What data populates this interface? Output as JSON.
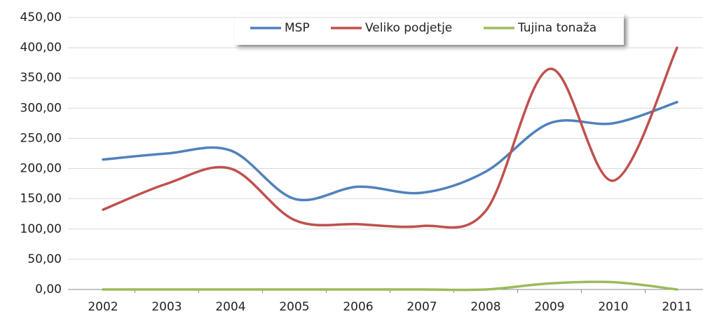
{
  "chart_data": {
    "type": "line",
    "categories": [
      "2002",
      "2003",
      "2004",
      "2005",
      "2006",
      "2007",
      "2008",
      "2009",
      "2010",
      "2011"
    ],
    "series": [
      {
        "name": "MSP",
        "color": "#4f81bd",
        "values": [
          215,
          225,
          230,
          150,
          170,
          160,
          195,
          275,
          275,
          310
        ]
      },
      {
        "name": "Veliko podjetje",
        "color": "#c0504d",
        "values": [
          132,
          175,
          200,
          115,
          108,
          105,
          130,
          365,
          180,
          400
        ]
      },
      {
        "name": "Tujina tonaža",
        "color": "#9bbb59",
        "values": [
          0,
          0,
          0,
          0,
          0,
          0,
          0,
          10,
          12,
          0
        ]
      }
    ],
    "ylim": [
      0,
      450
    ],
    "yticks": [
      {
        "value": 0,
        "label": "0,00"
      },
      {
        "value": 50,
        "label": "50,00"
      },
      {
        "value": 100,
        "label": "100,00"
      },
      {
        "value": 150,
        "label": "150,00"
      },
      {
        "value": 200,
        "label": "200,00"
      },
      {
        "value": 250,
        "label": "250,00"
      },
      {
        "value": 300,
        "label": "300,00"
      },
      {
        "value": 350,
        "label": "350,00"
      },
      {
        "value": 400,
        "label": "400,00"
      },
      {
        "value": 450,
        "label": "450,00"
      }
    ],
    "grid": true,
    "legend": "top"
  }
}
